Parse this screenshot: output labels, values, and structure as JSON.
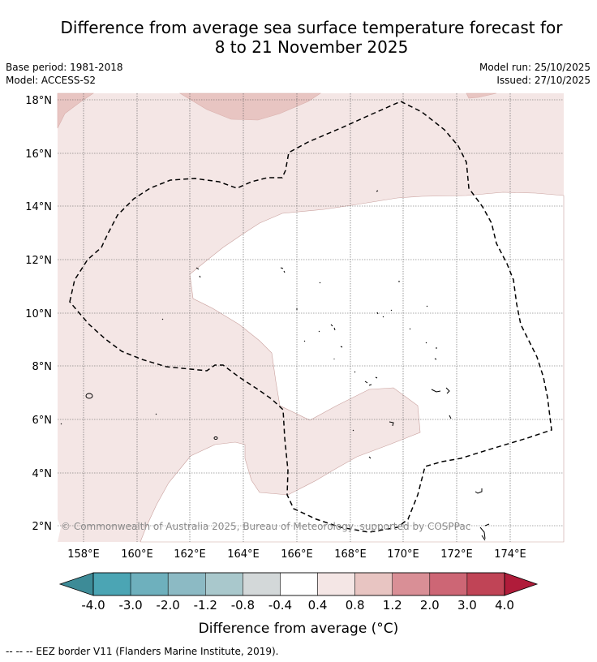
{
  "title": {
    "line1": "Difference from average sea surface temperature forecast for",
    "line2": "8 to 21 November 2025"
  },
  "meta": {
    "base_period": "Base period: 1981-2018",
    "model": "Model: ACCESS-S2",
    "model_run": "Model run: 25/10/2025",
    "issued": "Issued: 27/10/2025"
  },
  "map": {
    "lat_labels": [
      "18°N",
      "16°N",
      "14°N",
      "12°N",
      "10°N",
      "8°N",
      "6°N",
      "4°N",
      "2°N"
    ],
    "lon_labels": [
      "158°E",
      "160°E",
      "162°E",
      "164°E",
      "166°E",
      "168°E",
      "170°E",
      "172°E",
      "174°E"
    ],
    "copyright": "© Commonwealth of Australia 2025, Bureau of Meteorology, supported by COSPPac",
    "fill_colors": {
      "light": "#f4e6e5",
      "medium": "#e8c5c2",
      "neutral": "#ffffff"
    }
  },
  "colorbar": {
    "ticks": [
      "-4.0",
      "-3.0",
      "-2.0",
      "-1.2",
      "-0.8",
      "-0.4",
      "0.4",
      "0.8",
      "1.2",
      "2.0",
      "3.0",
      "4.0"
    ],
    "colors": [
      "#4ba5b4",
      "#6eb0bd",
      "#8cbac4",
      "#a9c8cc",
      "#d3d8d9",
      "#ffffff",
      "#f4e6e5",
      "#e8c5c2",
      "#d98f96",
      "#cd6675",
      "#c04456"
    ],
    "low_extend_color": "#3d8b97",
    "high_extend_color": "#b01c3a",
    "label": "Difference from average (°C)"
  },
  "legend": {
    "text": "--  --  -- EEZ border V11 (Flanders Marine Institute, 2019)."
  }
}
